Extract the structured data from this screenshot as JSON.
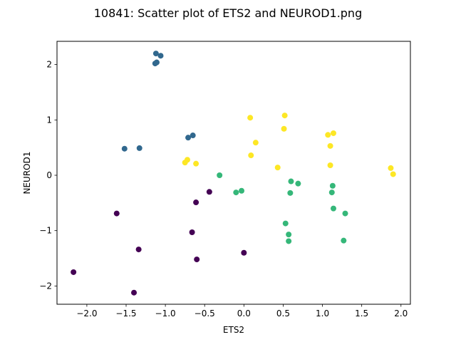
{
  "chart_data": {
    "type": "scatter",
    "title": "10841: Scatter plot of ETS2 and NEUROD1.png",
    "xlabel": "ETS2",
    "ylabel": "NEUROD1",
    "xlim": [
      -2.38,
      2.12
    ],
    "ylim": [
      -2.33,
      2.42
    ],
    "xticks": [
      -2.0,
      -1.5,
      -1.0,
      -0.5,
      0.0,
      0.5,
      1.0,
      1.5,
      2.0
    ],
    "xtick_labels": [
      "−2.0",
      "−1.5",
      "−1.0",
      "−0.5",
      "0.0",
      "0.5",
      "1.0",
      "1.5",
      "2.0"
    ],
    "yticks": [
      -2,
      -1,
      0,
      1,
      2
    ],
    "ytick_labels": [
      "−2",
      "−1",
      "0",
      "1",
      "2"
    ],
    "grid": false,
    "colors": {
      "cluster_purple": "#440154",
      "cluster_blue": "#31688e",
      "cluster_green": "#35b779",
      "cluster_yellow": "#fde725"
    },
    "series": [
      {
        "color": "#440154",
        "points": [
          [
            -2.17,
            -1.75
          ],
          [
            -1.62,
            -0.69
          ],
          [
            -1.4,
            -2.12
          ],
          [
            -1.34,
            -1.34
          ],
          [
            -0.66,
            -1.03
          ],
          [
            -0.61,
            -0.49
          ],
          [
            -0.6,
            -1.52
          ],
          [
            -0.44,
            -0.3
          ],
          [
            0.0,
            -1.4
          ]
        ]
      },
      {
        "color": "#31688e",
        "points": [
          [
            -1.52,
            0.48
          ],
          [
            -1.33,
            0.49
          ],
          [
            -1.12,
            2.2
          ],
          [
            -1.06,
            2.16
          ],
          [
            -1.11,
            2.04
          ],
          [
            -1.13,
            2.02
          ],
          [
            -0.71,
            0.68
          ],
          [
            -0.65,
            0.72
          ]
        ]
      },
      {
        "color": "#35b779",
        "points": [
          [
            -0.31,
            0.0
          ],
          [
            -0.1,
            -0.31
          ],
          [
            -0.03,
            -0.28
          ],
          [
            0.53,
            -0.87
          ],
          [
            0.57,
            -1.07
          ],
          [
            0.57,
            -1.19
          ],
          [
            0.59,
            -0.32
          ],
          [
            0.6,
            -0.11
          ],
          [
            0.69,
            -0.15
          ],
          [
            1.12,
            -0.31
          ],
          [
            1.13,
            -0.19
          ],
          [
            1.14,
            -0.6
          ],
          [
            1.27,
            -1.18
          ],
          [
            1.29,
            -0.69
          ]
        ]
      },
      {
        "color": "#fde725",
        "points": [
          [
            -0.75,
            0.23
          ],
          [
            -0.72,
            0.28
          ],
          [
            -0.61,
            0.21
          ],
          [
            0.08,
            1.04
          ],
          [
            0.09,
            0.36
          ],
          [
            0.15,
            0.59
          ],
          [
            0.43,
            0.14
          ],
          [
            0.51,
            0.84
          ],
          [
            0.52,
            1.08
          ],
          [
            1.07,
            0.73
          ],
          [
            1.1,
            0.53
          ],
          [
            1.1,
            0.18
          ],
          [
            1.14,
            0.76
          ],
          [
            1.87,
            0.13
          ],
          [
            1.9,
            0.02
          ]
        ]
      }
    ]
  }
}
